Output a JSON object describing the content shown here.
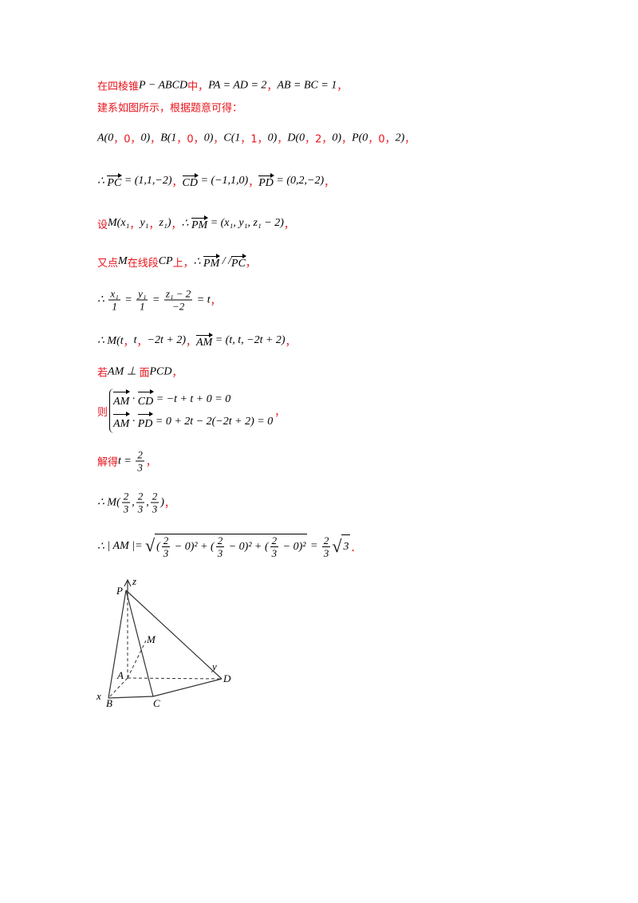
{
  "lines": [
    {
      "segments": [
        {
          "zh": "在四棱锥"
        },
        {
          "m": "P − ABCD"
        },
        {
          "zh": "中，"
        },
        {
          "m": "PA = AD = 2"
        },
        {
          "zh": "，"
        },
        {
          "m": "AB = BC = 1"
        },
        {
          "zh": "，"
        }
      ]
    },
    {
      "segments": [
        {
          "zh": "建系如图所示，根据题意可得："
        }
      ]
    },
    {
      "segments": [
        {
          "m": "A(0"
        },
        {
          "zh": "，0，"
        },
        {
          "m": "0)"
        },
        {
          "zh": "，"
        },
        {
          "m": "B(1"
        },
        {
          "zh": "，0，"
        },
        {
          "m": "0)"
        },
        {
          "zh": "，"
        },
        {
          "m": "C(1"
        },
        {
          "zh": "，1，"
        },
        {
          "m": "0)"
        },
        {
          "zh": "，"
        },
        {
          "m": "D(0"
        },
        {
          "zh": "，2，"
        },
        {
          "m": "0)"
        },
        {
          "zh": "，"
        },
        {
          "m": "P(0"
        },
        {
          "zh": "，0，"
        },
        {
          "m": "2)"
        },
        {
          "zh": "，"
        }
      ]
    },
    {
      "segments": [
        {
          "m": "∴ "
        },
        {
          "vec": "PC"
        },
        {
          "m": " = (1,1,−2)"
        },
        {
          "zh": "，"
        },
        {
          "vec": "CD"
        },
        {
          "m": " = (−1,1,0)"
        },
        {
          "zh": "，"
        },
        {
          "vec": "PD"
        },
        {
          "m": " = (0,2,−2)"
        },
        {
          "zh": "，"
        }
      ]
    },
    {
      "segments": [
        {
          "zh": "设"
        },
        {
          "m": "M(x₁"
        },
        {
          "zh": "，"
        },
        {
          "m": "y₁"
        },
        {
          "zh": "，"
        },
        {
          "m": "z₁)"
        },
        {
          "zh": "，"
        },
        {
          "m": "∴ "
        },
        {
          "vec": "PM"
        },
        {
          "m": " = (x₁, y₁, z₁ − 2)"
        },
        {
          "zh": "，"
        }
      ]
    },
    {
      "segments": [
        {
          "zh": "又点"
        },
        {
          "m": "M"
        },
        {
          "zh": "在线段"
        },
        {
          "m": "CP"
        },
        {
          "zh": "上，"
        },
        {
          "m": "∴ "
        },
        {
          "vec": "PM"
        },
        {
          "m": " / /"
        },
        {
          "vec": "PC"
        },
        {
          "zh": "，"
        }
      ]
    },
    {
      "segments": [
        {
          "m": "∴ "
        },
        {
          "frac": [
            "x₁",
            "1"
          ]
        },
        {
          "m": " = "
        },
        {
          "frac": [
            "y₁",
            "1"
          ]
        },
        {
          "m": " = "
        },
        {
          "frac": [
            "z₁ − 2",
            "−2"
          ]
        },
        {
          "m": " = t"
        },
        {
          "zh": "，"
        }
      ]
    },
    {
      "segments": [
        {
          "m": "∴ M(t"
        },
        {
          "zh": "，"
        },
        {
          "m": "t"
        },
        {
          "zh": "，"
        },
        {
          "m": "−2t + 2)"
        },
        {
          "zh": "，"
        },
        {
          "vec": "AM"
        },
        {
          "m": " = (t, t, −2t + 2)"
        },
        {
          "zh": "，"
        }
      ]
    },
    {
      "segments": [
        {
          "zh": "若"
        },
        {
          "m": "AM ⊥ "
        },
        {
          "zh": "面"
        },
        {
          "m": "PCD"
        },
        {
          "zh": "，"
        }
      ]
    },
    {
      "segments": [
        {
          "zh": "则"
        },
        {
          "sys": [
            [
              {
                "vec": "AM"
              },
              {
                "m": " · "
              },
              {
                "vec": "CD"
              },
              {
                "m": " = −t + t + 0 = 0"
              }
            ],
            [
              {
                "vec": "AM"
              },
              {
                "m": " · "
              },
              {
                "vec": "PD"
              },
              {
                "m": " = 0 + 2t − 2(−2t + 2) = 0"
              }
            ]
          ]
        },
        {
          "zh": "，"
        }
      ]
    },
    {
      "segments": [
        {
          "zh": "解得"
        },
        {
          "m": "t = "
        },
        {
          "frac": [
            "2",
            "3"
          ]
        },
        {
          "zh": "，"
        }
      ]
    },
    {
      "segments": [
        {
          "m": "∴ "
        },
        {
          "m": "M("
        },
        {
          "frac": [
            "2",
            "3"
          ]
        },
        {
          "m": ","
        },
        {
          "frac": [
            "2",
            "3"
          ]
        },
        {
          "m": ","
        },
        {
          "frac": [
            "2",
            "3"
          ]
        },
        {
          "m": ")"
        },
        {
          "zh": "，"
        }
      ]
    },
    {
      "segments": [
        {
          "m": "∴ "
        },
        {
          "m": "| AM |= "
        },
        {
          "sqrt": [
            {
              "m": "("
            },
            {
              "frac": [
                "2",
                "3"
              ]
            },
            {
              "m": " − 0)² + ("
            },
            {
              "frac": [
                "2",
                "3"
              ]
            },
            {
              "m": " − 0)² + ("
            },
            {
              "frac": [
                "2",
                "3"
              ]
            },
            {
              "m": " − 0)²"
            }
          ]
        },
        {
          "m": " = "
        },
        {
          "frac": [
            "2",
            "3"
          ]
        },
        {
          "sqrt": [
            {
              "m": "3"
            }
          ]
        },
        {
          "zh": "．"
        }
      ]
    }
  ],
  "figure": {
    "labels": [
      "P",
      "z",
      "M",
      "A",
      "y",
      "D",
      "x",
      "B",
      "C"
    ]
  }
}
